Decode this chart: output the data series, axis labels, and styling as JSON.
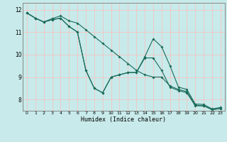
{
  "xlabel": "Humidex (Indice chaleur)",
  "xlim": [
    -0.5,
    23.5
  ],
  "ylim": [
    7.5,
    12.3
  ],
  "yticks": [
    8,
    9,
    10,
    11,
    12
  ],
  "xticks": [
    0,
    1,
    2,
    3,
    4,
    5,
    6,
    7,
    8,
    9,
    10,
    11,
    12,
    13,
    14,
    15,
    16,
    17,
    18,
    19,
    20,
    21,
    22,
    23
  ],
  "bg_color": "#c8eaea",
  "grid_color": "#f0c8c8",
  "line_color": "#1a6b5a",
  "line1": [
    11.85,
    11.62,
    11.45,
    11.55,
    11.62,
    11.25,
    11.0,
    9.3,
    8.5,
    8.3,
    9.0,
    9.1,
    9.2,
    9.2,
    9.9,
    10.7,
    10.35,
    9.5,
    8.55,
    8.45,
    7.8,
    7.78,
    7.58,
    7.65
  ],
  "line2": [
    11.85,
    11.62,
    11.45,
    11.6,
    11.72,
    11.5,
    11.4,
    11.1,
    10.8,
    10.5,
    10.2,
    9.9,
    9.6,
    9.3,
    9.1,
    9.0,
    9.0,
    8.6,
    8.45,
    8.35,
    7.75,
    7.72,
    7.55,
    7.6
  ],
  "line3": [
    11.85,
    11.62,
    11.45,
    11.55,
    11.62,
    11.25,
    11.0,
    9.3,
    8.5,
    8.3,
    9.0,
    9.1,
    9.2,
    9.2,
    9.85,
    9.85,
    9.3,
    8.55,
    8.4,
    8.3,
    7.72,
    7.72,
    7.55,
    7.6
  ]
}
